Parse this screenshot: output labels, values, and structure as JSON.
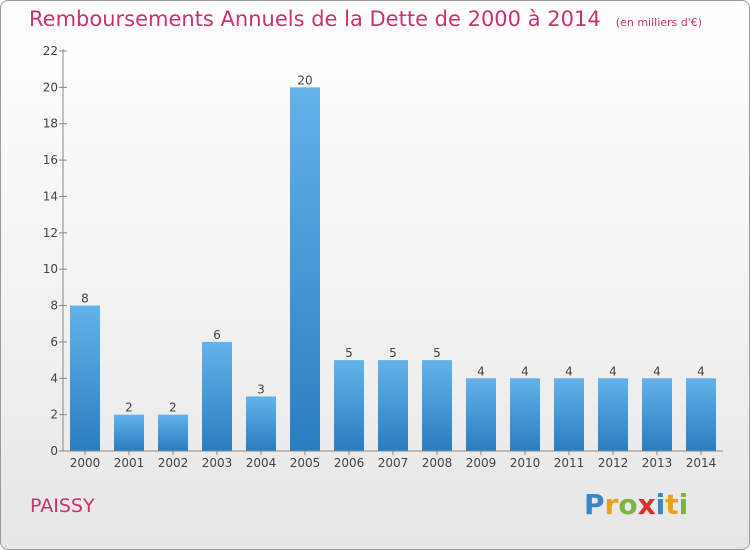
{
  "title": "Remboursements Annuels de la Dette de 2000 à 2014",
  "subtitle": "(en milliers d'€)",
  "commune": "PAISSY",
  "logo": {
    "letters": [
      "P",
      "r",
      "o",
      "x",
      "i",
      "t",
      "i"
    ],
    "colors": [
      "#3a86c8",
      "#e8a21a",
      "#7cb342",
      "#d93030",
      "#3a86c8",
      "#e8a21a",
      "#7cb342"
    ]
  },
  "colors": {
    "bar_top": "#64b2ea",
    "bar_bottom": "#2a7dc0",
    "axis_text": "#444444",
    "accent": "#c8336d"
  },
  "chart_data": {
    "type": "bar",
    "categories": [
      "2000",
      "2001",
      "2002",
      "2003",
      "2004",
      "2005",
      "2006",
      "2007",
      "2008",
      "2009",
      "2010",
      "2011",
      "2012",
      "2013",
      "2014"
    ],
    "values": [
      8,
      2,
      2,
      6,
      3,
      20,
      5,
      5,
      5,
      4,
      4,
      4,
      4,
      4,
      4
    ],
    "data_labels": [
      "8",
      "2",
      "2",
      "6",
      "3",
      "20",
      "5",
      "5",
      "5",
      "4",
      "4",
      "4",
      "4",
      "4",
      "4"
    ],
    "yticks": [
      0,
      2,
      4,
      6,
      8,
      10,
      12,
      14,
      16,
      18,
      20,
      22
    ],
    "ylim": [
      0,
      22
    ],
    "grid": false
  }
}
